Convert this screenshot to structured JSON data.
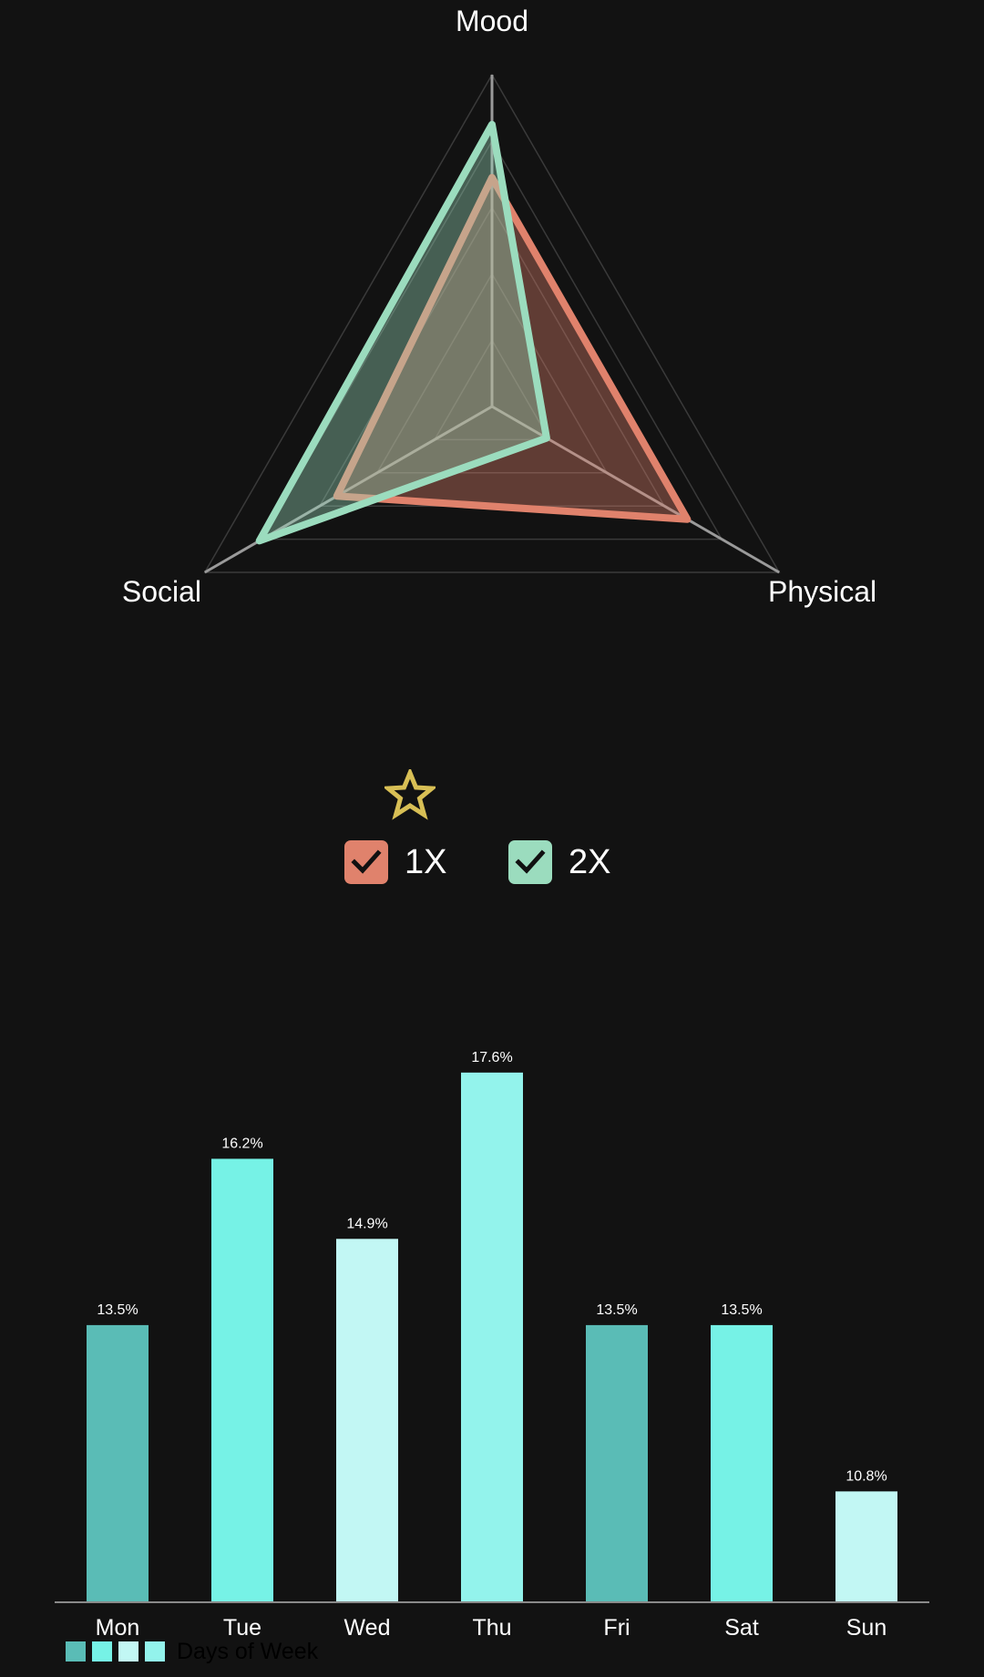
{
  "colors": {
    "background": "#121212",
    "series_1x": "#e0826c",
    "series_2x": "#9bdcbe",
    "star": "#d8bf55",
    "web": "#3a3a3a",
    "axis": "#9a9a9a",
    "bar_palette": [
      "#5abcb6",
      "#76f2e6",
      "#c2f7f4",
      "#93f3ec"
    ]
  },
  "toolbar": {
    "star_icon": "star-outline-icon",
    "legend": [
      {
        "label": "1X",
        "color": "#e0826c",
        "checked": true
      },
      {
        "label": "2X",
        "color": "#9bdcbe",
        "checked": true
      }
    ]
  },
  "chart_data": [
    {
      "type": "radar",
      "axes": [
        "Mood",
        "Physical",
        "Social"
      ],
      "range": [
        0,
        1
      ],
      "levels": 5,
      "series": [
        {
          "name": "1X",
          "color": "#e0826c",
          "values": [
            0.69,
            0.68,
            0.54
          ]
        },
        {
          "name": "2X",
          "color": "#9bdcbe",
          "values": [
            0.85,
            0.19,
            0.81
          ]
        }
      ]
    },
    {
      "type": "bar",
      "categories": [
        "Mon",
        "Tue",
        "Wed",
        "Thu",
        "Fri",
        "Sat",
        "Sun"
      ],
      "values": [
        13.5,
        16.2,
        14.9,
        17.6,
        13.5,
        13.5,
        10.8
      ],
      "value_labels": [
        "13.5%",
        "16.2%",
        "14.9%",
        "17.6%",
        "13.5%",
        "13.5%",
        "10.8%"
      ],
      "colors": [
        "#5abcb6",
        "#76f2e6",
        "#c2f7f4",
        "#93f3ec",
        "#5abcb6",
        "#76f2e6",
        "#c2f7f4"
      ],
      "ylim": [
        9.0,
        18.5
      ],
      "legend": {
        "label": "Days of Week",
        "swatches": [
          "#5abcb6",
          "#76f2e6",
          "#c2f7f4",
          "#93f3ec"
        ]
      }
    }
  ]
}
